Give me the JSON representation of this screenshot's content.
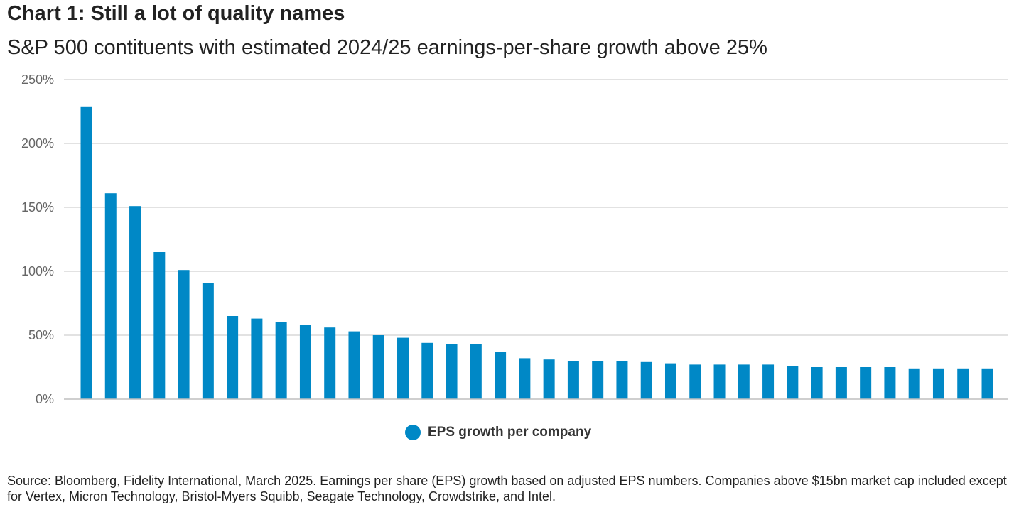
{
  "title": "Chart 1: Still a lot of quality names",
  "subtitle": "S&P 500 contituents with estimated 2024/25 earnings-per-share growth above 25%",
  "source": "Source: Bloomberg, Fidelity International, March 2025. Earnings per share (EPS) growth based on adjusted EPS numbers. Companies above $15bn market cap included except for Vertex, Micron Technology, Bristol-Myers Squibb, Seagate Technology, Crowdstrike, and Intel.",
  "colors": {
    "bar": "#0088c6",
    "grid": "#d9d9d9",
    "axis": "#bfbfbf"
  },
  "chart_data": {
    "type": "bar",
    "title": "Chart 1: Still a lot of quality names",
    "subtitle": "S&P 500 contituents with estimated 2024/25 earnings-per-share growth above 25%",
    "xlabel": "",
    "ylabel": "",
    "ylim": [
      0,
      250
    ],
    "yticks": [
      0,
      50,
      100,
      150,
      200,
      250
    ],
    "ytick_labels": [
      "0%",
      "50%",
      "100%",
      "150%",
      "200%",
      "250%"
    ],
    "grid": true,
    "legend_position": "bottom",
    "series": [
      {
        "name": "EPS growth per company",
        "color": "#0088c6",
        "values": [
          229,
          161,
          151,
          115,
          101,
          91,
          65,
          63,
          60,
          58,
          56,
          53,
          50,
          48,
          44,
          43,
          43,
          37,
          32,
          31,
          30,
          30,
          30,
          29,
          28,
          27,
          27,
          27,
          27,
          26,
          25,
          25,
          25,
          25,
          24,
          24,
          24,
          24
        ]
      }
    ]
  }
}
